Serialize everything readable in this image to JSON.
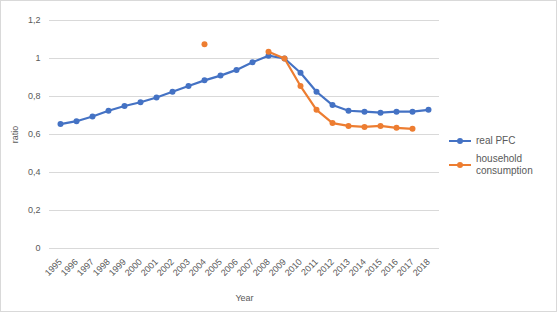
{
  "chart_data": {
    "type": "line",
    "x_label": "Year",
    "y_label": "ratio",
    "categories": [
      "1995",
      "1996",
      "1997",
      "1998",
      "1999",
      "2000",
      "2001",
      "2002",
      "2003",
      "2004",
      "2005",
      "2006",
      "2007",
      "2008",
      "2009",
      "2010",
      "2011",
      "2012",
      "2013",
      "2014",
      "2015",
      "2016",
      "2017",
      "2018"
    ],
    "series": [
      {
        "name": "real PFC",
        "color": "#4472c4",
        "marker": "circle",
        "values": [
          0.655,
          0.67,
          0.695,
          0.725,
          0.75,
          0.77,
          0.795,
          0.825,
          0.855,
          0.885,
          0.91,
          0.94,
          0.98,
          1.015,
          1.0,
          0.925,
          0.825,
          0.755,
          0.725,
          0.72,
          0.715,
          0.72,
          0.72,
          0.73
        ]
      },
      {
        "name": "household consumption",
        "color": "#ed7d31",
        "marker": "circle",
        "values": [
          null,
          null,
          null,
          null,
          null,
          null,
          null,
          null,
          null,
          1.075,
          null,
          null,
          null,
          1.035,
          1.0,
          0.855,
          0.73,
          0.66,
          0.645,
          0.64,
          0.645,
          0.635,
          0.63,
          null
        ]
      }
    ],
    "ylim": [
      0,
      1.2
    ],
    "yticks": [
      0,
      {
        "value": 0.2,
        "label": "0,2"
      },
      {
        "value": 0.4,
        "label": "0,4"
      },
      {
        "value": 0.6,
        "label": "0,6"
      },
      {
        "value": 0.8,
        "label": "0,8"
      },
      1,
      {
        "value": 1.2,
        "label": "1,2"
      }
    ],
    "grid": true,
    "legend": "right"
  }
}
